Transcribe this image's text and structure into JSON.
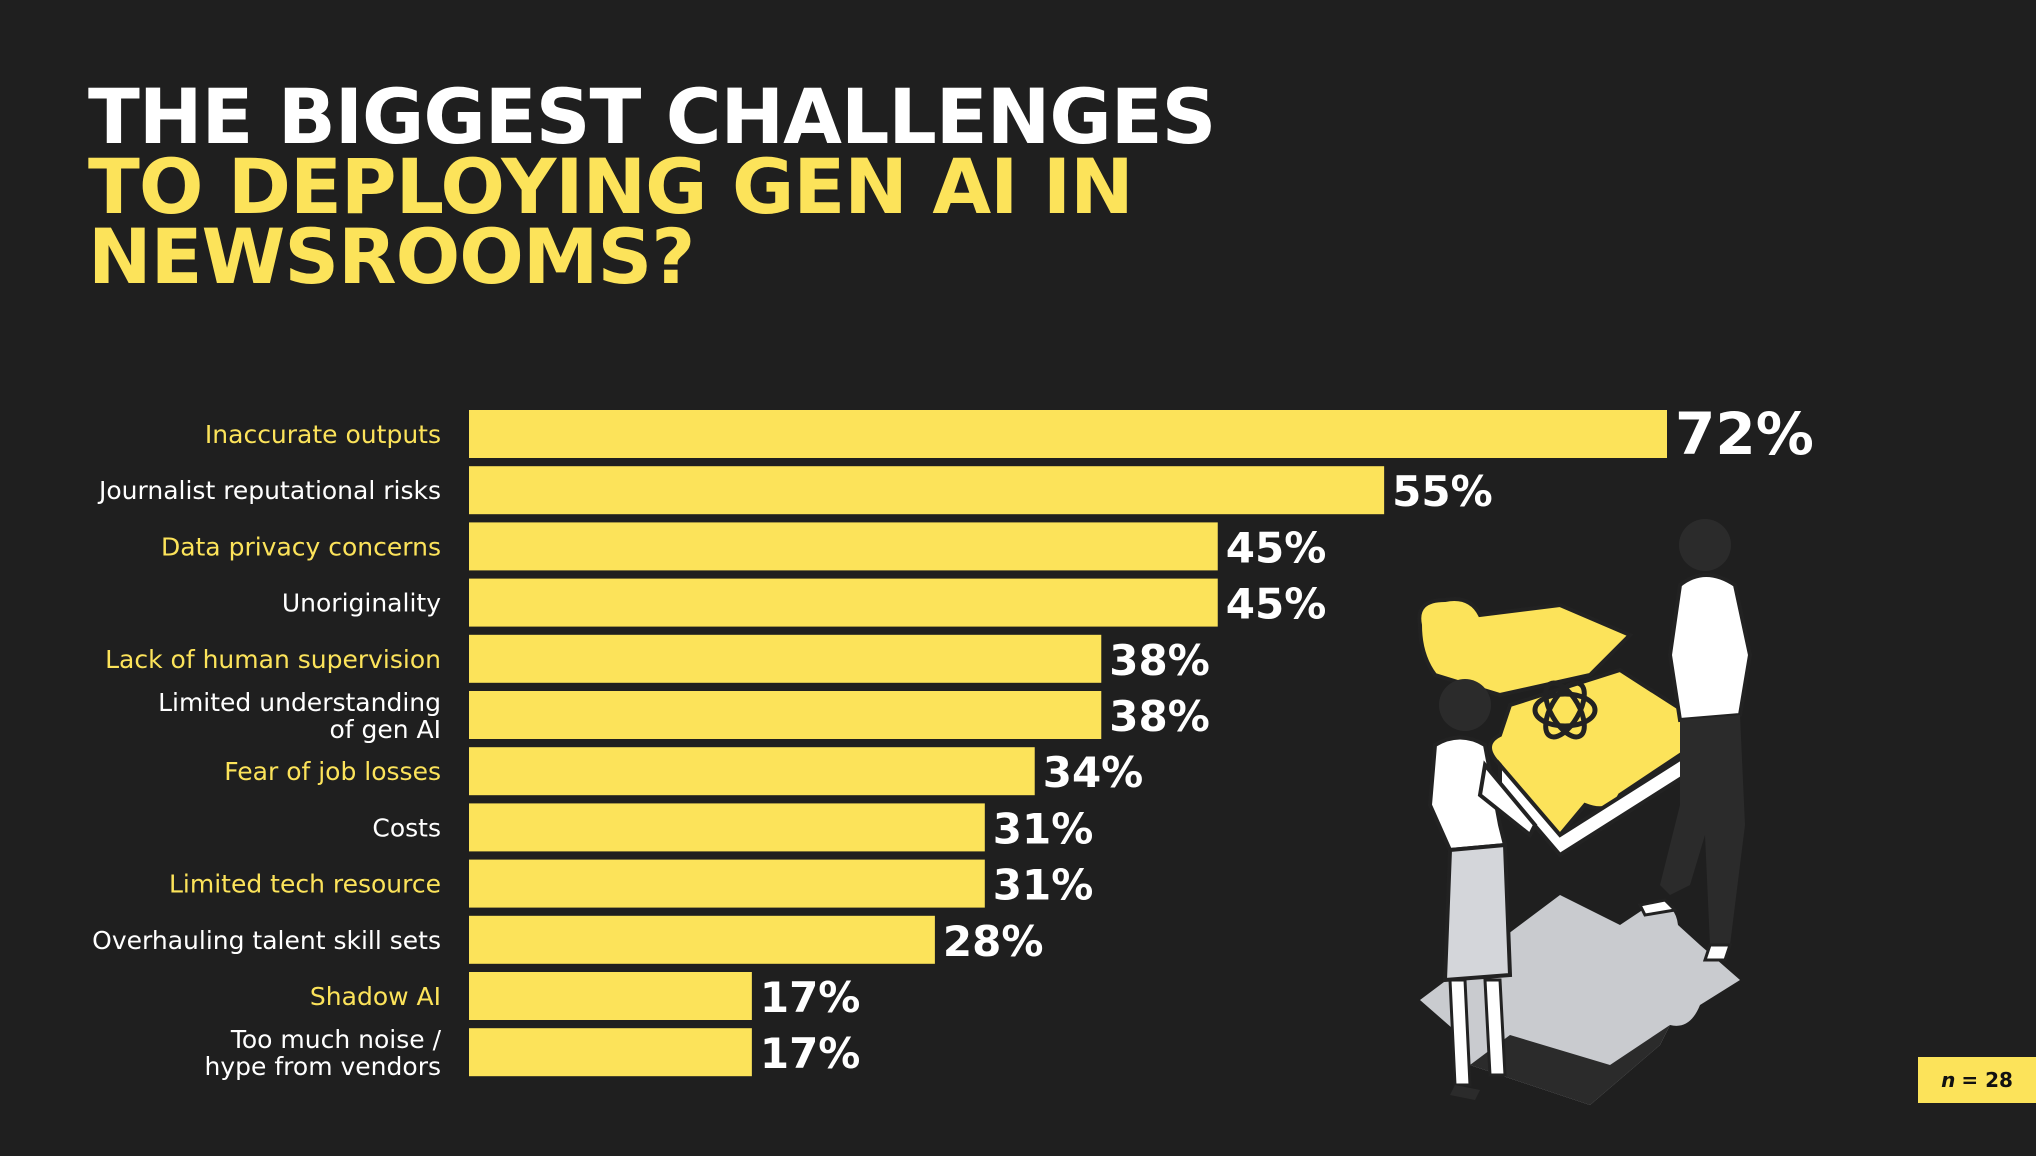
{
  "title": {
    "line1": "THE BIGGEST CHALLENGES",
    "line2": "TO DEPLOYING GEN AI IN",
    "line3": "NEWSROOMS?"
  },
  "sample": {
    "symbol": "n",
    "text": "= 28"
  },
  "colors": {
    "background": "#1f1f1f",
    "bar": "#fce35a",
    "accent_label": "#fce35a",
    "label": "#ffffff"
  },
  "chart_data": {
    "type": "bar",
    "orientation": "horizontal",
    "categories": [
      "Inaccurate outputs",
      "Journalist reputational risks",
      "Data privacy concerns",
      "Unoriginality",
      "Lack of human supervision",
      "Limited understanding of gen AI",
      "Fear of job losses",
      "Costs",
      "Limited tech resource",
      "Overhauling talent skill sets",
      "Shadow AI",
      "Too much noise / hype from vendors"
    ],
    "category_lines": [
      [
        "Inaccurate outputs"
      ],
      [
        "Journalist reputational risks"
      ],
      [
        "Data privacy concerns"
      ],
      [
        "Unoriginality"
      ],
      [
        "Lack of human supervision"
      ],
      [
        "Limited understanding",
        "of gen AI"
      ],
      [
        "Fear of job losses"
      ],
      [
        "Costs"
      ],
      [
        "Limited tech resource"
      ],
      [
        "Overhauling talent skill sets"
      ],
      [
        "Shadow AI"
      ],
      [
        "Too much noise /",
        "hype from vendors"
      ]
    ],
    "values": [
      72,
      55,
      45,
      45,
      38,
      38,
      34,
      31,
      31,
      28,
      17,
      17
    ],
    "value_labels": [
      "72%",
      "55%",
      "45%",
      "45%",
      "38%",
      "38%",
      "34%",
      "31%",
      "31%",
      "28%",
      "17%",
      "17%"
    ],
    "xlim": [
      0,
      72
    ],
    "grid": false,
    "legend": "none"
  }
}
